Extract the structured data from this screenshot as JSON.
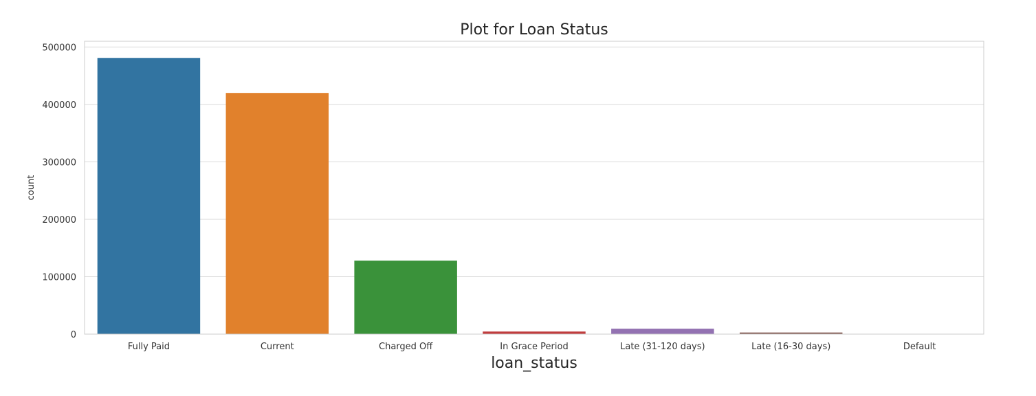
{
  "chart_data": {
    "type": "bar",
    "title": "Plot for Loan Status",
    "xlabel": "loan_status",
    "ylabel": "count",
    "categories": [
      "Fully Paid",
      "Current",
      "Charged Off",
      "In Grace Period",
      "Late (31-120 days)",
      "Late (16-30 days)",
      "Default"
    ],
    "values": [
      481000,
      420000,
      128000,
      4500,
      9500,
      2800,
      200
    ],
    "colors": [
      "#3274a1",
      "#e1812c",
      "#3a923a",
      "#c03d3e",
      "#9372b2",
      "#845b53",
      "#d684bd"
    ],
    "ylim": [
      0,
      510000
    ],
    "yticks": [
      0,
      100000,
      200000,
      300000,
      400000,
      500000
    ],
    "ytick_labels": [
      "0",
      "100000",
      "200000",
      "300000",
      "400000",
      "500000"
    ],
    "grid": "horizontal",
    "style": "seaborn-whitegrid"
  }
}
